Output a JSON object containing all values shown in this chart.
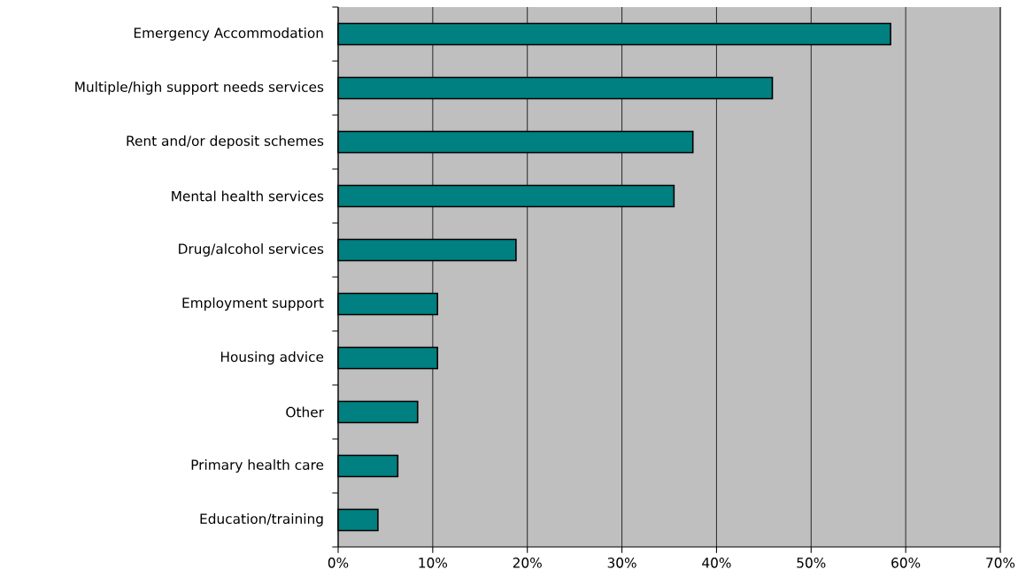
{
  "chart_data": {
    "type": "bar",
    "orientation": "horizontal",
    "categories": [
      "Emergency Accommodation",
      "Multiple/high support needs services",
      "Rent and/or deposit schemes",
      "Mental health services",
      "Drug/alcohol services",
      "Employment support",
      "Housing advice",
      "Other",
      "Primary health care",
      "Education/training"
    ],
    "values": [
      58.4,
      45.9,
      37.5,
      35.5,
      18.8,
      10.5,
      10.5,
      8.4,
      6.3,
      4.2
    ],
    "color": "#008080",
    "xlim": [
      0,
      70
    ],
    "xticks": [
      {
        "value": 0,
        "label": "0%"
      },
      {
        "value": 10,
        "label": "10%"
      },
      {
        "value": 20,
        "label": "20%"
      },
      {
        "value": 30,
        "label": "30%"
      },
      {
        "value": 40,
        "label": "40%"
      },
      {
        "value": 50,
        "label": "50%"
      },
      {
        "value": 60,
        "label": "60%"
      },
      {
        "value": 70,
        "label": "70%"
      }
    ],
    "grid": "x"
  }
}
